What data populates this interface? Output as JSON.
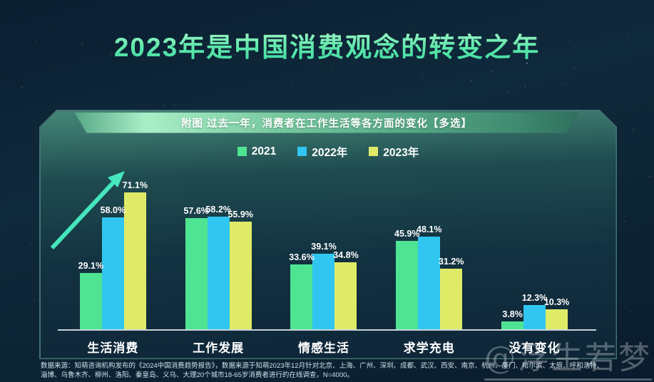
{
  "page": {
    "title": "2023年是中国消费观念的转变之年",
    "banner_label": "附图 过去一年，消费者在工作生活等各方面的变化【多选】",
    "watermark": "@浮生若梦",
    "footer_line1": "数据来源：知萌咨询机构发布的《2024中国消费趋势报告》，数据来源于知萌2023年12月针对北京、上海、广州、深圳、成都、武汉、西安、南京、杭州、厦门、哈尔滨、太原、呼和浩特、",
    "footer_line2": "淄博、乌鲁木齐、柳州、洛阳、秦皇岛、义乌、大理20个城市18-65岁消费者进行的在线调查，N=4000。"
  },
  "colors": {
    "series_2021": "#4fe492",
    "series_2022": "#30c6f0",
    "series_2023": "#dfeb67",
    "arrow_accent": "#45e6bd",
    "title_green": "#66e8a6"
  },
  "legend": [
    {
      "label": "2021",
      "color": "#4fe492"
    },
    {
      "label": "2022年",
      "color": "#30c6f0"
    },
    {
      "label": "2023年",
      "color": "#dfeb67"
    }
  ],
  "chart_data": {
    "type": "bar",
    "title": "过去一年，消费者在工作生活等各方面的变化【多选】",
    "categories": [
      "生活消费",
      "工作发展",
      "情感生活",
      "求学充电",
      "没有变化"
    ],
    "series": [
      {
        "name": "2021",
        "color": "#4fe492",
        "values": [
          29.1,
          57.6,
          33.6,
          45.9,
          3.8
        ]
      },
      {
        "name": "2022年",
        "color": "#30c6f0",
        "values": [
          58.0,
          58.2,
          39.1,
          48.1,
          12.3
        ]
      },
      {
        "name": "2023年",
        "color": "#dfeb67",
        "values": [
          71.1,
          55.9,
          34.8,
          31.2,
          10.3
        ]
      }
    ],
    "value_suffix": "%",
    "ylim": [
      0,
      80
    ],
    "grid": false,
    "legend_position": "top",
    "annotations": [
      "upward-trend-arrow-over-first-category"
    ]
  }
}
